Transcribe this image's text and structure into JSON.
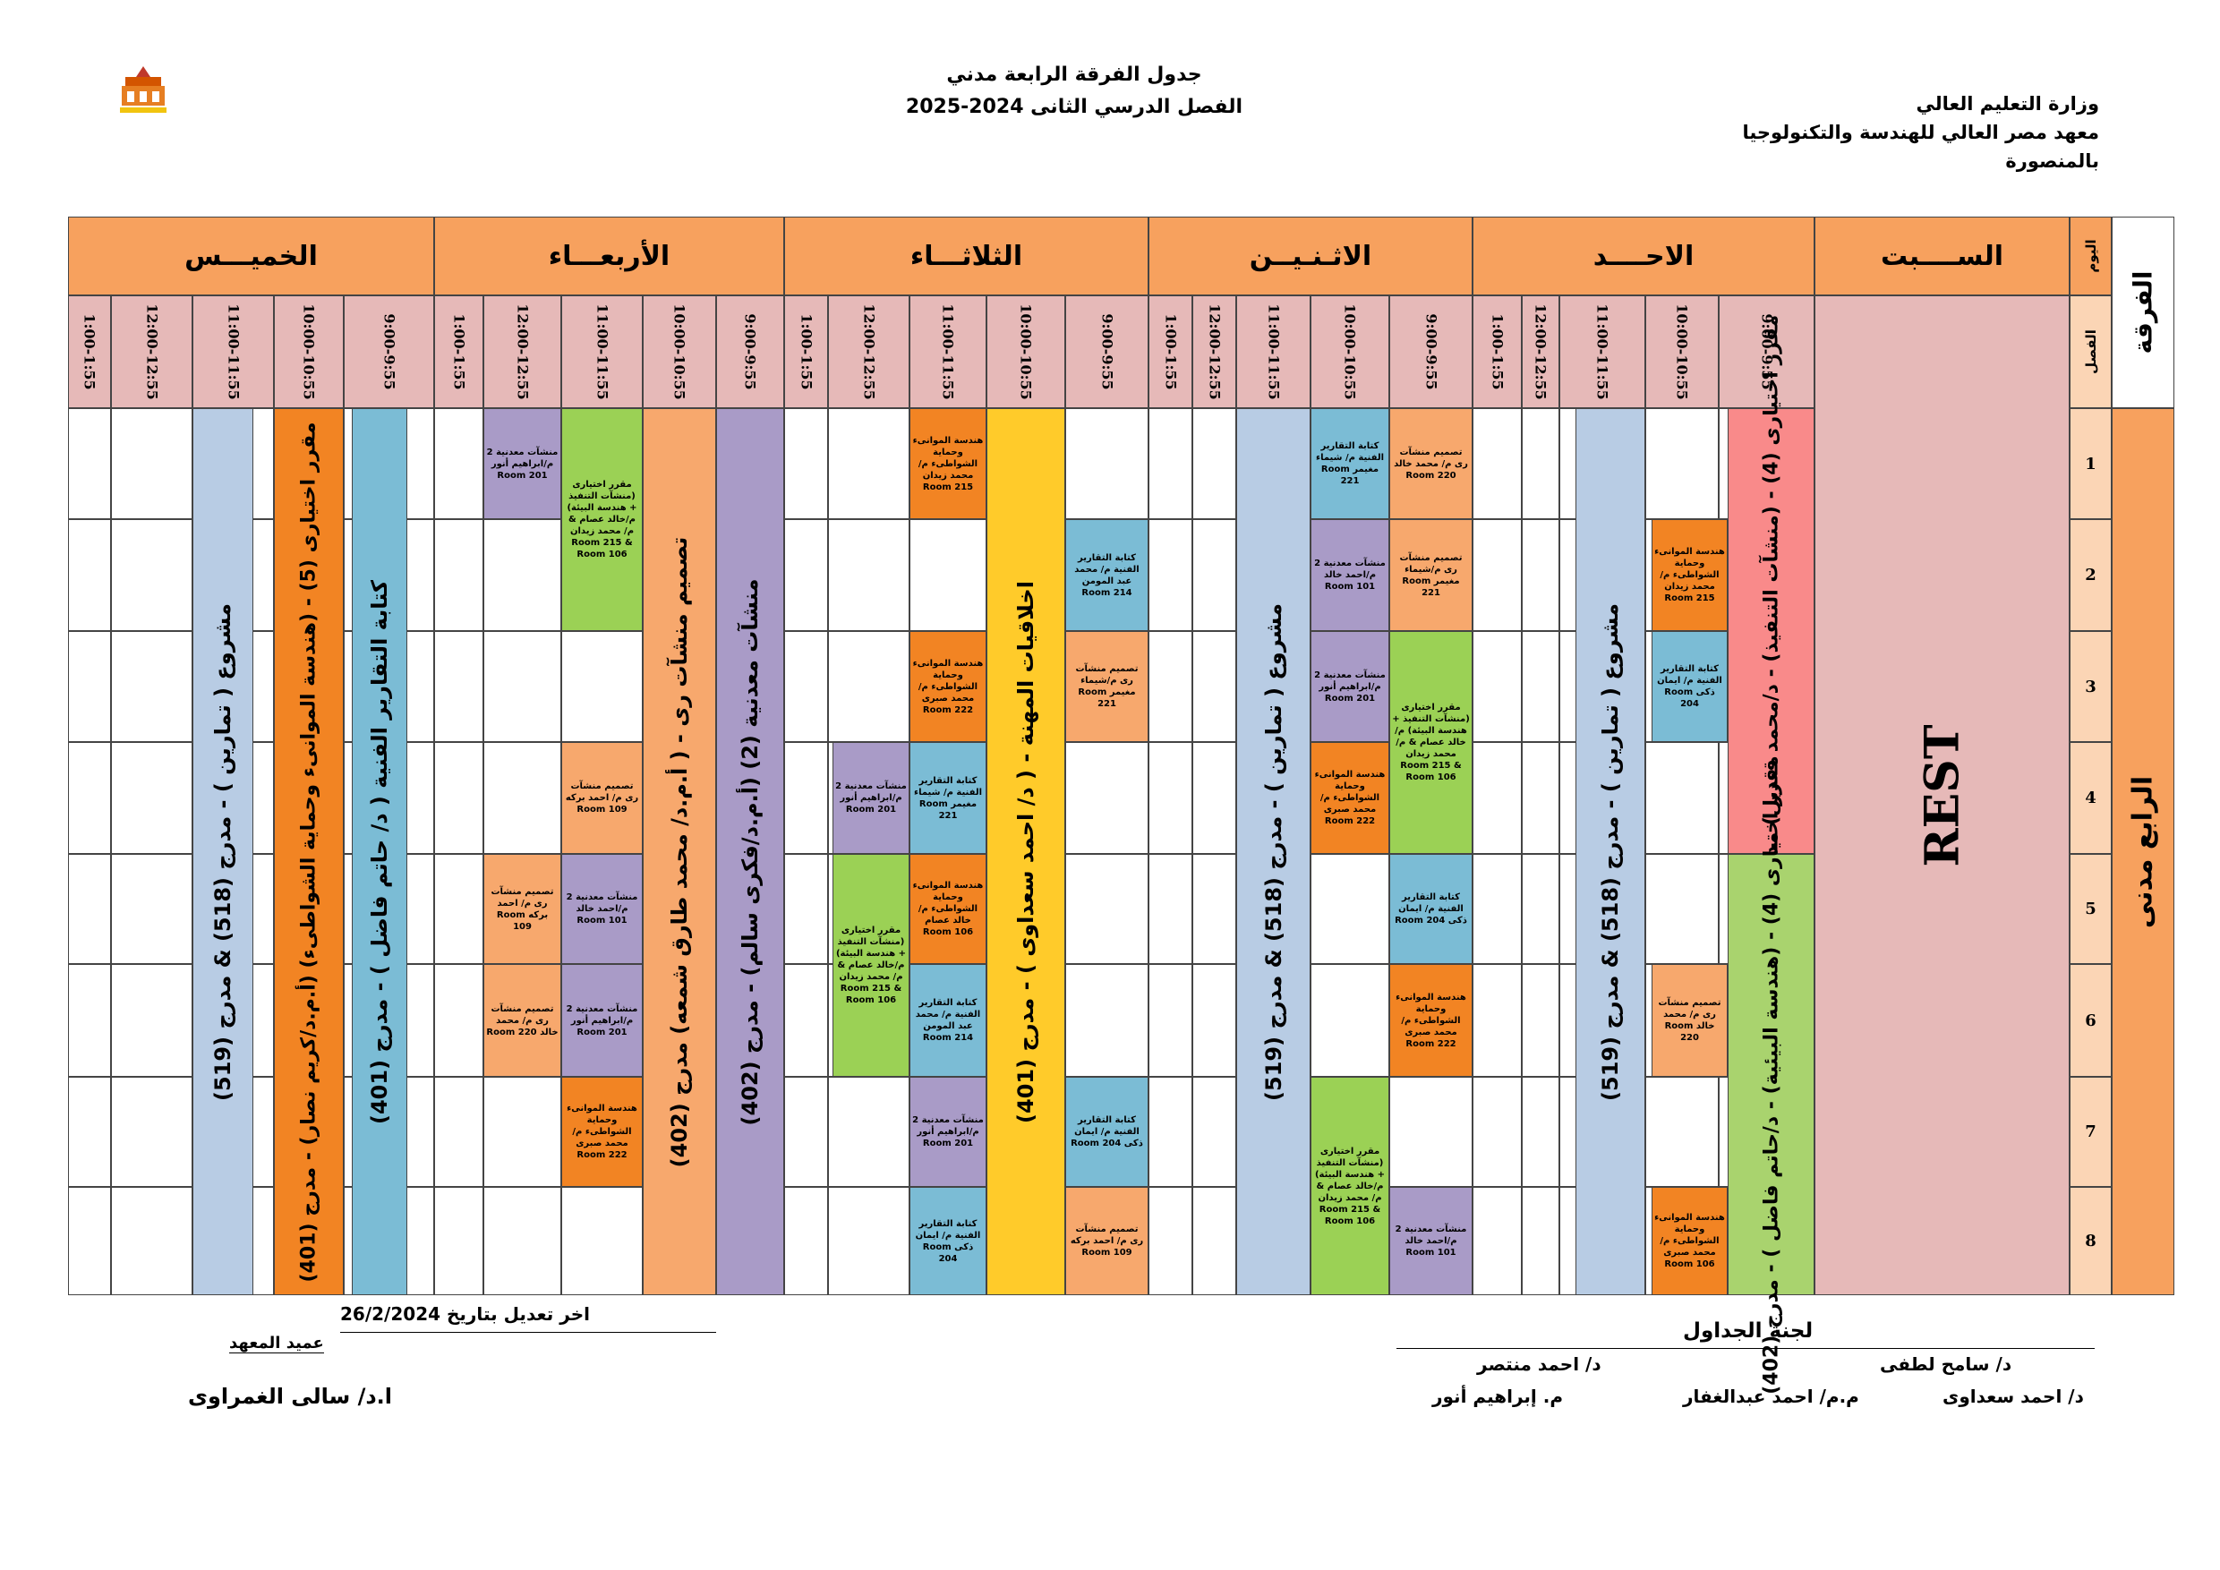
{
  "header": {
    "ministry": "وزارة التعليم العالي",
    "institute": "معهد مصر العالي للهندسة والتكنولوجيا",
    "city": "بالمنصورة",
    "title": "جدول الفرقة الرابعة مدني",
    "semester": "الفصل الدرسي الثانى 2024-2025"
  },
  "table": {
    "corner_day": "اليوم",
    "corner_class": "الفصل",
    "grade_header": "الفرقة",
    "grade": "الرابع مدنى",
    "days": [
      "السبت",
      "الاحد",
      "الاثنين",
      "الثلاثاء",
      "الأربعاء",
      "الخميس"
    ],
    "day_labels": [
      "الســــبت",
      "الاحــــد",
      "الاثـنـيــن",
      "الثلاثـــاء",
      "الأربعـــاء",
      "الخميـــس"
    ],
    "times": [
      "9:00-9:55",
      "10:00-10:55",
      "11:00-11:55",
      "12:00-12:55",
      "1:00-1:55"
    ],
    "periods": [
      "1",
      "2",
      "3",
      "4",
      "5",
      "6",
      "7",
      "8"
    ],
    "saturday": "REST",
    "sunday": {
      "elective_a": "مقرر اختيارى (4) - (منشآت التنفيذ) - د/محمد قنديل) مدرج (401)",
      "elective_b": "مقرر اختيارى (4) - (هندسة البيئية) - د/حاتم فاضل ) - مدرج (402)",
      "project": "مشروع ( تمارين ) - مدرج (518) & مدرج (519)",
      "port_215": "هندسة الموانىء وحماية الشواطىء م/محمد زيدان Room 215",
      "report_204": "كتابة التقارير الفنية م/ ايمان ذكى Room 204",
      "design_220": "تصميم منشآت رى م/ محمد خالد Room 220",
      "port_106": "هندسة الموانىء وحماية الشواطىء م/محمد صبرى Room 106"
    },
    "monday": {
      "project": "مشروع ( تمارين ) - مدرج (518) & مدرج (519)",
      "design_220": "تصميم منشآت رى م/ محمد خالد Room 220",
      "design_221": "تصميم منشآت رى م/شيماء مغيمر Room 221",
      "elective_ab": "مقرر اختيارى (منشآت التنفيذ + هندسة البيئة) م/خالد عصام & م/ محمد زيدان Room 215 & Room 106",
      "report_204": "كتابة التقارير الفنية م/ ايمان ذكى Room 204",
      "port_222": "هندسة الموانىء وحماية الشواطىء م/محمد صبرى Room 222",
      "metal_101": "منشآت معدنية 2 م/احمد خالد Room 101",
      "report_221": "كتابة التقارير الفنية م/ شيماء مغيمر Room 221",
      "metal_201": "منشآت معدنية 2 م/ابراهيم أنور Room 201",
      "port_222b": "هندسة الموانىء وحماية الشواطىء م/محمد صبرى Room 222",
      "elective_c": "مقرر اختيارى (منشآت التنفيذ + هندسة البيئة) م/خالد عصام & م/ محمد زيدان Room 215 & Room 106",
      "metal_101b": "منشآت معدنية 2 م/احمد خالد Room 101"
    },
    "tuesday": {
      "ethics": "اخلاقيات المهنة - ( د/ احمد سعداوى ) - مدرج (401)",
      "report_214": "كتابة التقارير الفنية م/ محمد عبد المومن Room 214",
      "design_221": "تصميم منشآت رى م/شيماء مغيمر Room 221",
      "report_204": "كتابة التقارير الفنية م/ ايمان ذكى Room 204",
      "design_109": "تصميم منشآت رى م/ احمد بركه Room 109",
      "port_215": "هندسة الموانىء وحماية الشواطىء م/محمد زيدان Room 215",
      "port_222": "هندسة الموانىء وحماية الشواطىء م/محمد صبرى Room 222",
      "report_221": "كتابة التقارير الفنية م/ شيماء مغيمر Room 221",
      "port_106": "هندسة الموانىء وحماية الشواطىء م/خالد عصام Room 106",
      "report_214b": "كتابة التقارير الفنية م/ محمد عبد المومن Room 214",
      "metal_201": "منشآت معدنية 2 م/ابراهيم أنور Room 201",
      "report_204b": "كتابة التقارير الفنية م/ ايمان ذكى Room 204",
      "metal_201b": "منشآت معدنية 2 م/ابراهيم أنور Room 201",
      "elective_ab": "مقرر اختيارى (منشآت التنفيذ + هندسة البيئة) م/خالد عصام & م/ محمد زيدان Room 215 & Room 106"
    },
    "wednesday": {
      "metal_course": "منشآت معدنية (2) (أ.م.د/فكرى سالم) - مدرج (402)",
      "design_course": "تصميم منشآت رى - ( أ.م.د/ محمد طارق شمعه) مدرج (402)",
      "elective_ab": "مقرر اختيارى (منشآت التنفيذ + هندسة البيئة) م/خالد عصام & م/ محمد زيدان Room 215 & Room 106",
      "design_109": "تصميم منشآت رى م/ احمد بركه Room 109",
      "metal_101": "منشآت معدنية 2 م/احمد خالد Room 101",
      "metal_201b": "منشآت معدنية 2 م/ابراهيم أنور Room 201",
      "port_222": "هندسة الموانىء وحماية الشواطىء م/محمد صبرى Room 222",
      "metal_201": "منشآت معدنية 2 م/ابراهيم أنور Room 201",
      "design_109b": "تصميم منشآت رى م/ احمد بركه Room 109",
      "design_220": "تصميم منشآت رى م/ محمد خالد Room 220"
    },
    "thursday": {
      "report_course": "كتابة التقارير الفنية ( د/ حاتم فاضل ) - مدرج (401)",
      "elective": "مقرر اختيارى (5) - (هندسة الموانىء وحماية الشواطىء) (أ.م.د/كريم نصار) - مدرج (401)",
      "project": "مشروع ( تمارين ) - مدرج (518) & مدرج (519)"
    }
  },
  "footer": {
    "last_update": "اخر تعديل بتاريخ 26/2/2024",
    "dean_title": "عميد المعهد",
    "dean_name": "ا.د/ سالى الغمراوى",
    "committee_title": "لجنة الجداول",
    "members": [
      "د/ سامح لطفى",
      "د/ احمد منتصر",
      "د/ احمد سعداوى",
      "م.م/ احمد عبدالغفار",
      "م. إبراهيم أنور"
    ]
  },
  "colors": {
    "day_header": "#f7a15e",
    "time_header": "#e6b9b8",
    "period_cell": "#fbd5b5",
    "blue": "#b8cce4",
    "teal": "#7bbcd5",
    "orange": "#f28423",
    "purple": "#a99bc7",
    "green": "#9bd155",
    "yellow": "#ffcb2a",
    "salmon": "#f7a86d",
    "red": "#f98a8a",
    "rest": "#e6b9b8"
  }
}
